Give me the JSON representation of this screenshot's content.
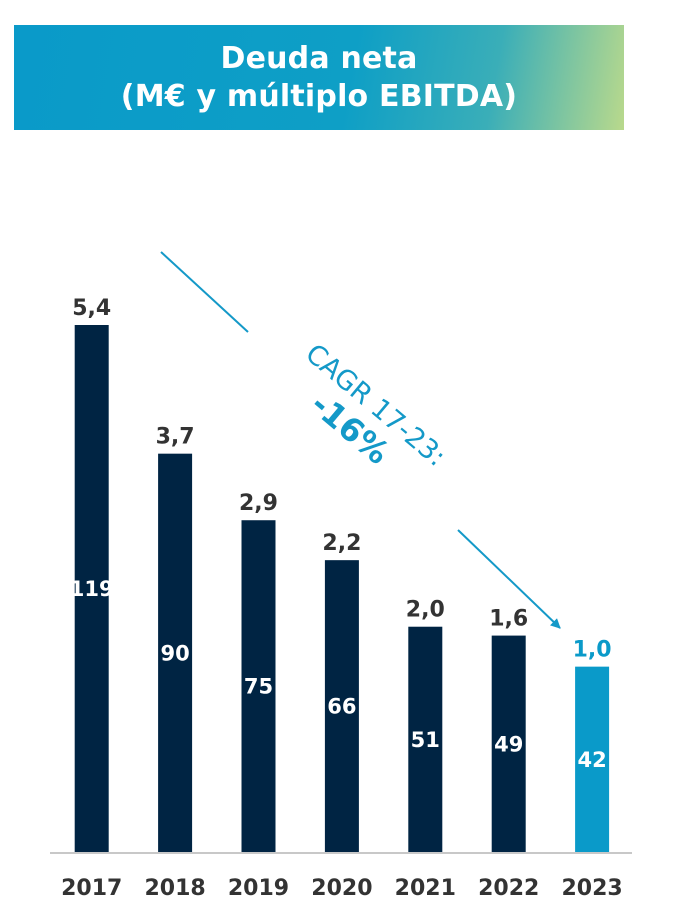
{
  "title": {
    "line1": "Deuda neta",
    "line2": "(M€ y múltiplo EBITDA)"
  },
  "annotation": {
    "label": "CAGR 17-23:",
    "value": "-16%"
  },
  "colors": {
    "bar": "#002443",
    "highlight": "#0a9ac9",
    "label": "#333333",
    "axis": "#c8c8c8",
    "arrow": "#1499c8"
  },
  "chart_data": {
    "type": "bar",
    "title": "Deuda neta (M€ y múltiplo EBITDA)",
    "categories": [
      "2017",
      "2018",
      "2019",
      "2020",
      "2021",
      "2022",
      "2023"
    ],
    "values": [
      119,
      90,
      75,
      66,
      51,
      49,
      42
    ],
    "value_labels": [
      "119",
      "90",
      "75",
      "66",
      "51",
      "49",
      "42"
    ],
    "ebitda_multiple": [
      5.4,
      3.7,
      2.9,
      2.2,
      2.0,
      1.6,
      1.0
    ],
    "ebitda_multiple_labels": [
      "5,4",
      "3,7",
      "2,9",
      "2,2",
      "2,0",
      "1,6",
      "1,0"
    ],
    "highlight_index": 6,
    "xlabel": "",
    "ylabel": "",
    "grid": false,
    "legend": "none"
  }
}
